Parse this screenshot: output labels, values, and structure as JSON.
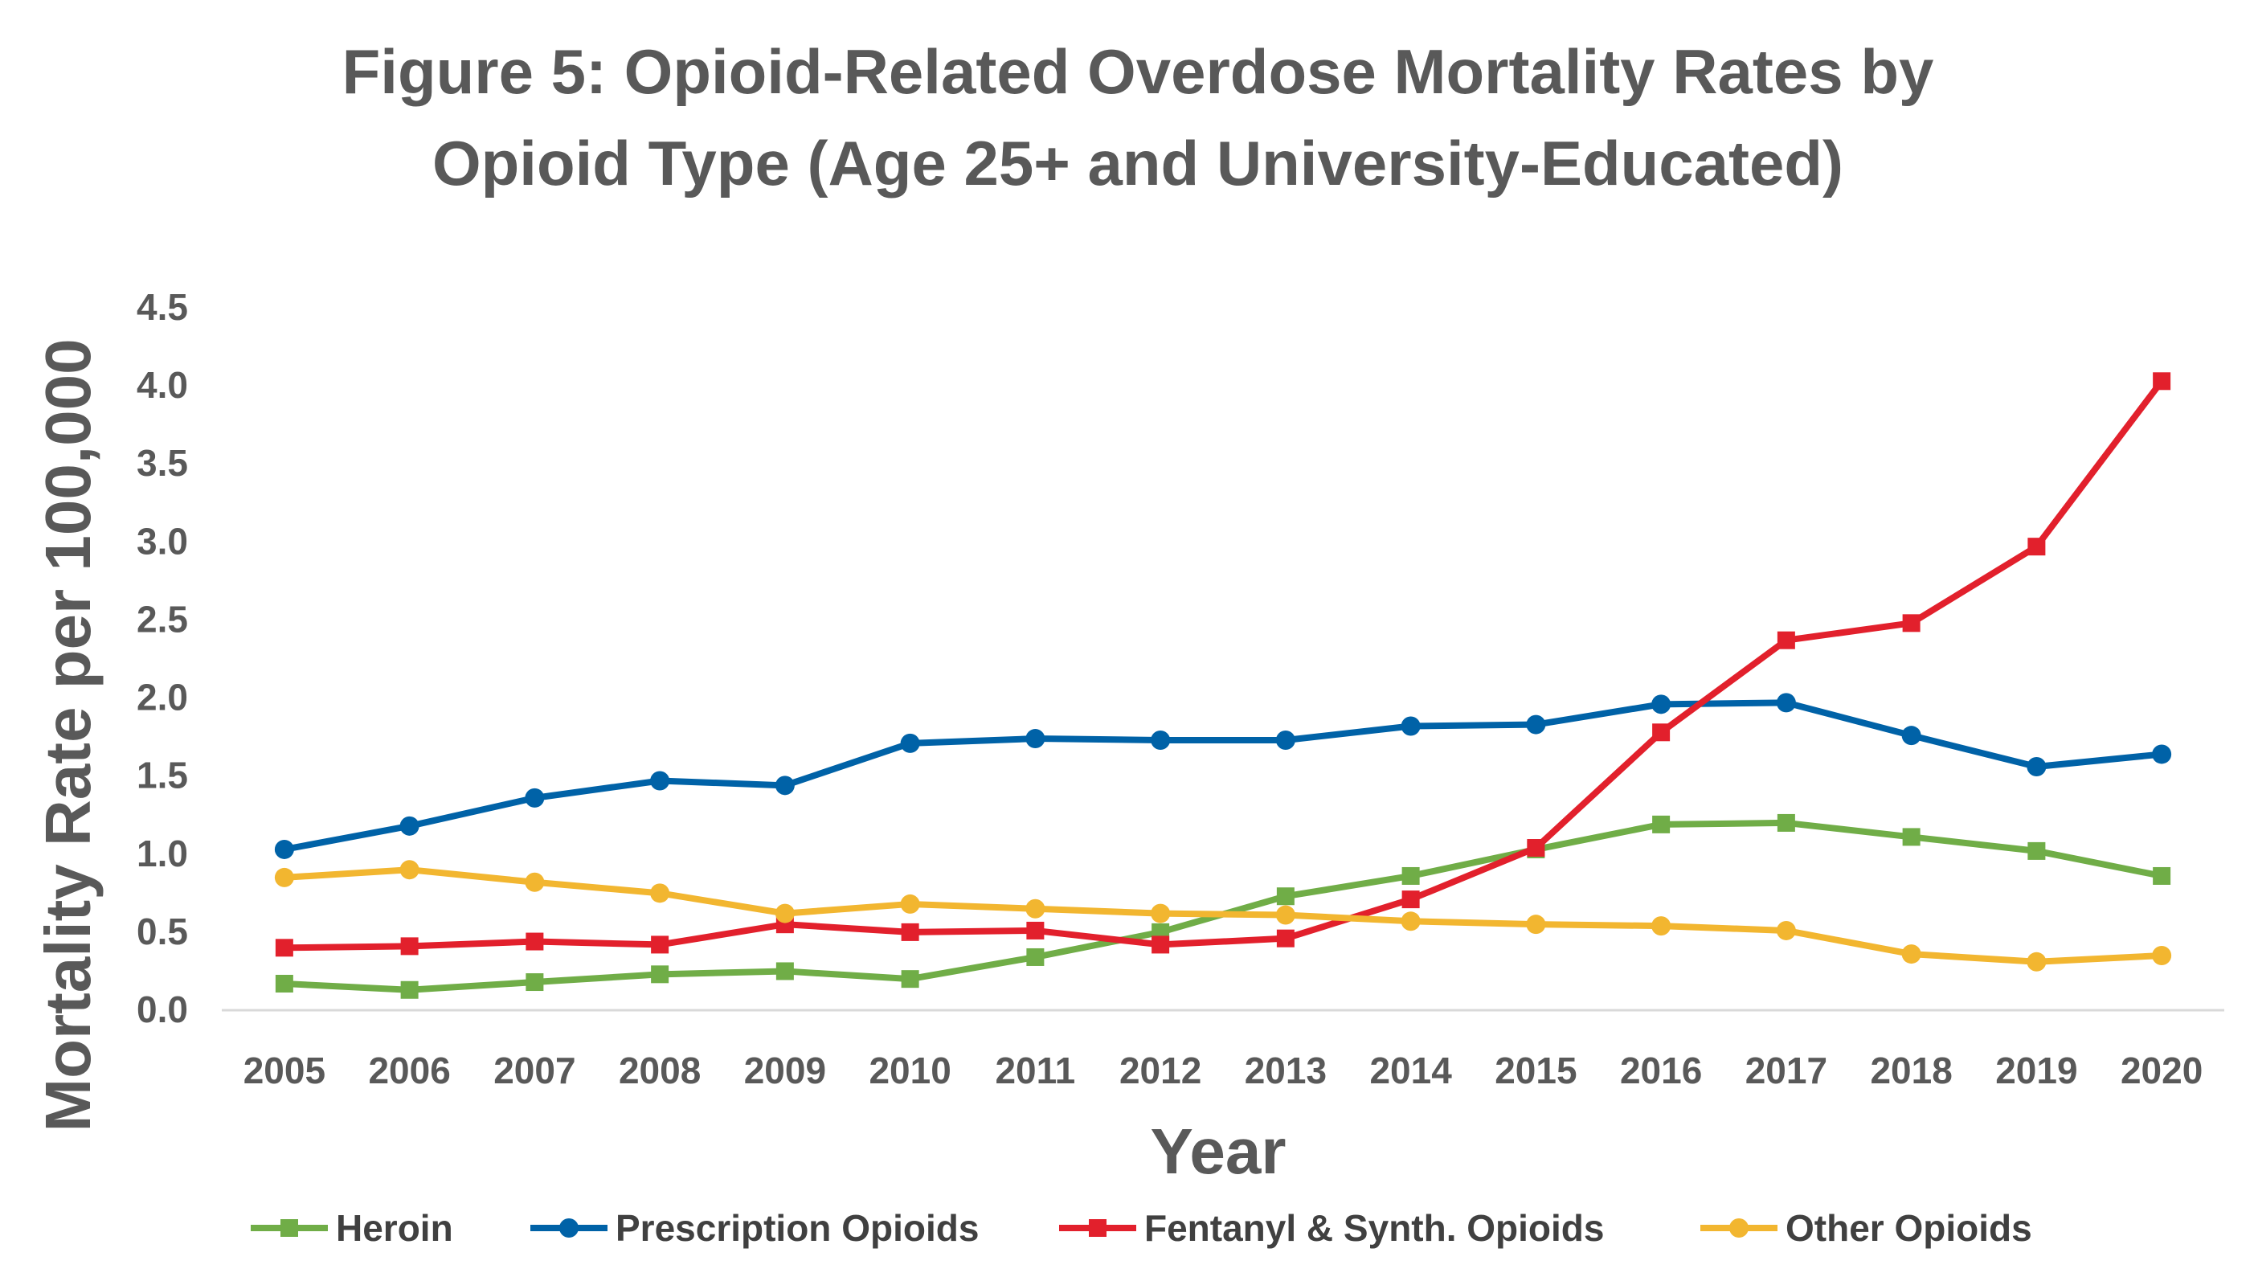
{
  "chart_data": {
    "type": "line",
    "title_lines": [
      "Figure 5: Opioid-Related Overdose Mortality Rates by",
      "Opioid Type (Age 25+ and University-Educated)"
    ],
    "xlabel": "Year",
    "ylabel": "Mortality Rate per 100,000",
    "ylim": [
      0,
      4.5
    ],
    "y_ticks": [
      "0.0",
      "0.5",
      "1.0",
      "1.5",
      "2.0",
      "2.5",
      "3.0",
      "3.5",
      "4.0",
      "4.5"
    ],
    "categories": [
      "2005",
      "2006",
      "2007",
      "2008",
      "2009",
      "2010",
      "2011",
      "2012",
      "2013",
      "2014",
      "2015",
      "2016",
      "2017",
      "2018",
      "2019",
      "2020"
    ],
    "grid": false,
    "legend_position": "bottom",
    "series": [
      {
        "name": "Heroin",
        "color": "#70AD47",
        "marker": "square",
        "values": [
          0.17,
          0.13,
          0.18,
          0.23,
          0.25,
          0.2,
          0.34,
          0.5,
          0.73,
          0.86,
          1.03,
          1.19,
          1.2,
          1.11,
          1.02,
          0.86
        ]
      },
      {
        "name": "Prescription Opioids",
        "color": "#0062A7",
        "marker": "circle",
        "values": [
          1.03,
          1.18,
          1.36,
          1.47,
          1.44,
          1.71,
          1.74,
          1.73,
          1.73,
          1.82,
          1.83,
          1.96,
          1.97,
          1.76,
          1.56,
          1.64
        ]
      },
      {
        "name": "Fentanyl & Synth. Opioids",
        "color": "#E2202C",
        "marker": "square",
        "values": [
          0.4,
          0.41,
          0.44,
          0.42,
          0.55,
          0.5,
          0.51,
          0.42,
          0.46,
          0.71,
          1.04,
          1.78,
          2.37,
          2.48,
          2.97,
          4.03
        ]
      },
      {
        "name": "Other Opioids",
        "color": "#F2B630",
        "marker": "circle",
        "values": [
          0.85,
          0.9,
          0.82,
          0.75,
          0.62,
          0.68,
          0.65,
          0.62,
          0.61,
          0.57,
          0.55,
          0.54,
          0.51,
          0.36,
          0.31,
          0.35
        ]
      }
    ]
  }
}
